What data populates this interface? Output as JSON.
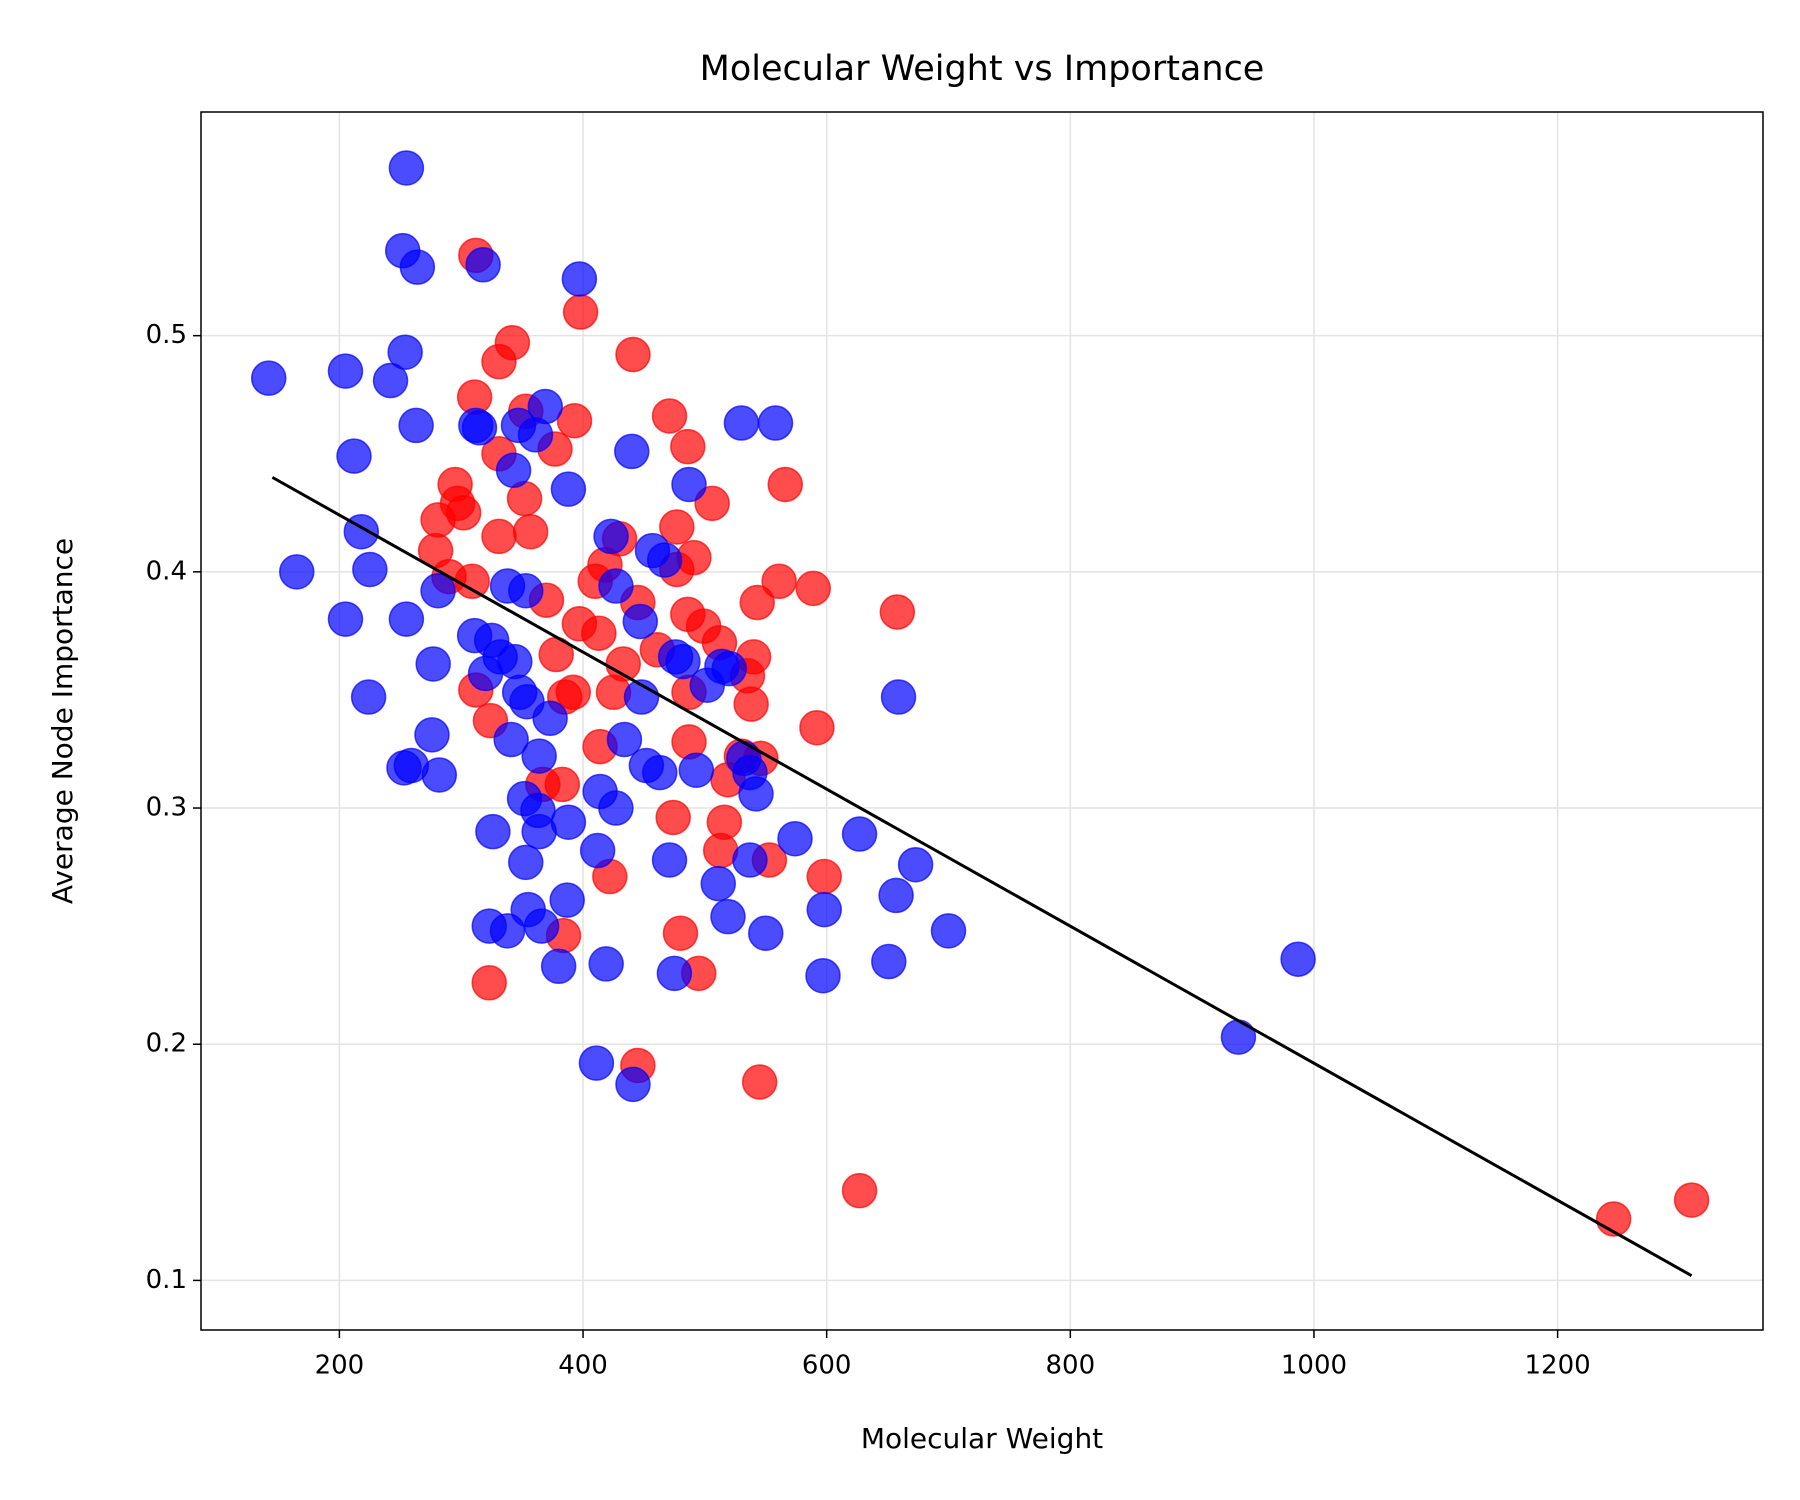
{
  "chart_data": {
    "type": "scatter",
    "title": "Molecular Weight vs Importance",
    "xlabel": "Molecular Weight",
    "ylabel": "Average Node Importance",
    "xlim": [
      86.4,
      1368.6
    ],
    "ylim": [
      0.079,
      0.5947
    ],
    "xticks": [
      200,
      400,
      600,
      800,
      1000,
      1200
    ],
    "yticks": [
      0.1,
      0.2,
      0.3,
      0.4,
      0.5
    ],
    "grid": true,
    "series": [
      {
        "color": "#ff0000",
        "x": [
          312,
          398,
          441,
          342,
          331,
          311,
          353,
          393,
          471,
          486,
          377,
          331,
          295,
          566,
          297,
          302,
          281,
          352,
          357,
          331,
          506,
          477,
          477,
          491,
          279,
          309,
          290,
          430,
          418,
          410,
          561,
          589,
          543,
          486,
          658,
          370,
          397,
          413,
          445,
          499,
          512,
          540,
          461,
          378,
          433,
          535,
          487,
          385,
          312,
          324,
          392,
          425,
          538,
          592,
          487,
          414,
          530,
          546,
          367,
          383,
          519,
          474,
          516,
          513,
          553,
          598,
          422,
          480,
          384,
          495,
          323,
          445,
          545,
          627,
          1246,
          1310
        ],
        "values": [
          0.534,
          0.51,
          0.492,
          0.497,
          0.489,
          0.474,
          0.468,
          0.464,
          0.466,
          0.453,
          0.452,
          0.45,
          0.437,
          0.437,
          0.429,
          0.425,
          0.422,
          0.431,
          0.417,
          0.415,
          0.429,
          0.419,
          0.401,
          0.406,
          0.409,
          0.396,
          0.398,
          0.414,
          0.403,
          0.396,
          0.396,
          0.393,
          0.387,
          0.382,
          0.383,
          0.388,
          0.378,
          0.374,
          0.387,
          0.377,
          0.37,
          0.364,
          0.367,
          0.365,
          0.361,
          0.356,
          0.349,
          0.347,
          0.35,
          0.337,
          0.349,
          0.349,
          0.344,
          0.334,
          0.328,
          0.326,
          0.322,
          0.321,
          0.31,
          0.31,
          0.312,
          0.296,
          0.294,
          0.282,
          0.278,
          0.271,
          0.271,
          0.247,
          0.246,
          0.23,
          0.226,
          0.191,
          0.184,
          0.138,
          0.126,
          0.134
        ]
      },
      {
        "color": "#0000ff",
        "x": [
          255,
          252,
          264,
          318,
          397,
          254,
          142,
          205,
          242,
          263,
          212,
          312,
          315,
          347,
          369,
          361,
          343,
          388,
          440,
          530,
          558,
          487,
          218,
          165,
          225,
          281,
          338,
          353,
          205,
          255,
          423,
          457,
          467,
          427,
          447,
          277,
          311,
          325,
          344,
          320,
          332,
          348,
          354,
          373,
          224,
          476,
          482,
          448,
          502,
          514,
          520,
          659,
          276,
          341,
          434,
          253,
          259,
          282,
          364,
          452,
          463,
          493,
          532,
          537,
          542,
          414,
          427,
          352,
          363,
          326,
          364,
          388,
          412,
          353,
          471,
          537,
          574,
          627,
          673,
          511,
          657,
          387,
          519,
          598,
          355,
          366,
          323,
          338,
          550,
          700,
          380,
          419,
          475,
          597,
          651,
          987,
          938,
          411,
          441
        ],
        "values": [
          0.571,
          0.536,
          0.529,
          0.53,
          0.524,
          0.493,
          0.482,
          0.485,
          0.481,
          0.462,
          0.449,
          0.462,
          0.461,
          0.462,
          0.47,
          0.458,
          0.443,
          0.435,
          0.451,
          0.463,
          0.463,
          0.437,
          0.417,
          0.4,
          0.401,
          0.392,
          0.394,
          0.392,
          0.38,
          0.38,
          0.415,
          0.409,
          0.405,
          0.394,
          0.379,
          0.361,
          0.373,
          0.371,
          0.362,
          0.357,
          0.364,
          0.349,
          0.345,
          0.338,
          0.347,
          0.364,
          0.362,
          0.347,
          0.352,
          0.36,
          0.359,
          0.347,
          0.331,
          0.329,
          0.329,
          0.317,
          0.318,
          0.314,
          0.322,
          0.318,
          0.315,
          0.316,
          0.321,
          0.315,
          0.306,
          0.307,
          0.3,
          0.304,
          0.299,
          0.29,
          0.29,
          0.294,
          0.282,
          0.277,
          0.278,
          0.278,
          0.287,
          0.289,
          0.276,
          0.268,
          0.263,
          0.261,
          0.254,
          0.257,
          0.257,
          0.25,
          0.25,
          0.248,
          0.247,
          0.248,
          0.233,
          0.234,
          0.23,
          0.229,
          0.235,
          0.236,
          0.203,
          0.192,
          0.183
        ]
      }
    ],
    "trendline": {
      "color": "#000000",
      "x": [
        145,
        1310
      ],
      "values": [
        0.44,
        0.102
      ]
    }
  }
}
